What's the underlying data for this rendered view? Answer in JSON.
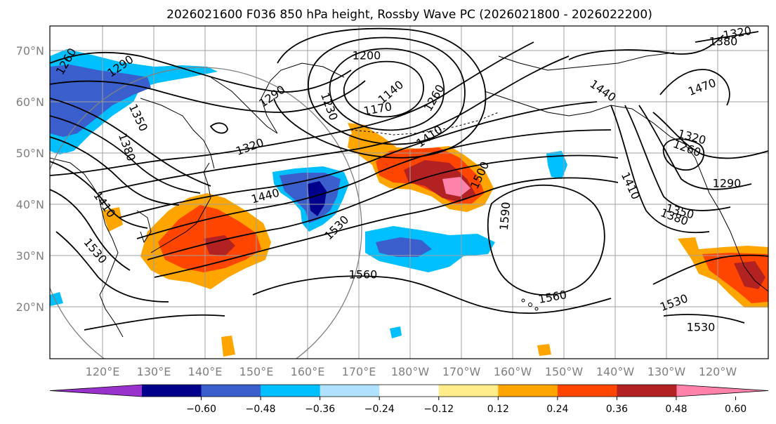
{
  "title": "2026021600 F036 850 hPa height, Rossby Wave PC (2026021800 - 2026022200)",
  "map": {
    "lat_labels": [
      "70°N",
      "60°N",
      "50°N",
      "40°N",
      "30°N",
      "20°N"
    ],
    "lon_labels": [
      "120°E",
      "130°E",
      "140°E",
      "150°E",
      "160°E",
      "170°E",
      "180°W",
      "170°W",
      "160°W",
      "150°W",
      "140°W",
      "130°W",
      "120°W"
    ],
    "contour_labels": [
      {
        "text": "1260"
      },
      {
        "text": "1290"
      },
      {
        "text": "1350"
      },
      {
        "text": "1380"
      },
      {
        "text": "1410"
      },
      {
        "text": "1530"
      },
      {
        "text": "1290"
      },
      {
        "text": "1320"
      },
      {
        "text": "1440"
      },
      {
        "text": "1530"
      },
      {
        "text": "1560"
      },
      {
        "text": "1200"
      },
      {
        "text": "1140"
      },
      {
        "text": "1170"
      },
      {
        "text": "1260"
      },
      {
        "text": "1230"
      },
      {
        "text": "1410"
      },
      {
        "text": "1500"
      },
      {
        "text": "1590"
      },
      {
        "text": "1560"
      },
      {
        "text": "1440"
      },
      {
        "text": "1470"
      },
      {
        "text": "1320"
      },
      {
        "text": "1260"
      },
      {
        "text": "1290"
      },
      {
        "text": "1410"
      },
      {
        "text": "1350"
      },
      {
        "text": "1380"
      },
      {
        "text": "1530"
      },
      {
        "text": "1530"
      },
      {
        "text": "1380"
      },
      {
        "text": "1320"
      }
    ]
  },
  "colorbar": {
    "colors": [
      "#9932cc",
      "#00008b",
      "#3a5fcd",
      "#00bfff",
      "#b0e2ff",
      "#ffffff",
      "#ffec8b",
      "#ffa500",
      "#ff4500",
      "#b22222",
      "#ff82ab"
    ],
    "tick_labels": [
      "−0.60",
      "−0.48",
      "−0.36",
      "−0.24",
      "−0.12",
      "0.12",
      "0.24",
      "0.36",
      "0.48",
      "0.60"
    ]
  }
}
